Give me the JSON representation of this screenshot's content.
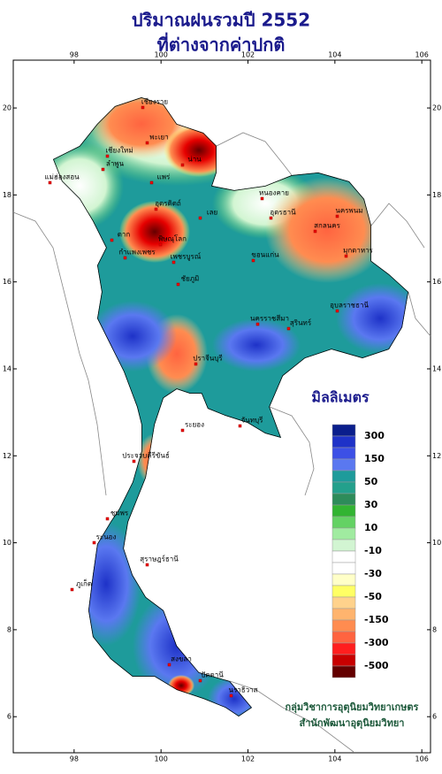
{
  "map": {
    "title": "ปริมาณฝนรวมปี 2552",
    "subtitle": "ที่ต่างจากค่าปกติ",
    "lon_range": [
      96.6,
      106.2
    ],
    "lat_range": [
      5.17,
      21.1
    ],
    "lon_ticks": [
      98,
      100,
      102,
      104,
      106
    ],
    "lat_ticks": [
      6,
      8,
      10,
      12,
      14,
      16,
      18,
      20
    ],
    "legend": {
      "title": "มิลลิเมตร",
      "labels": [
        300,
        150,
        50,
        30,
        10,
        -10,
        -30,
        -50,
        -150,
        -300,
        -500
      ],
      "colors": [
        "#0a1e8c",
        "#1e32c8",
        "#3c50e6",
        "#5a78f0",
        "#1e9b9b",
        "#23a08c",
        "#2d8c5a",
        "#32b432",
        "#64d264",
        "#a0eba0",
        "#d2f5d2",
        "#ffffff",
        "#ffffff",
        "#ffffc8",
        "#ffff64",
        "#ffd28c",
        "#ffb46e",
        "#ff8c50",
        "#ff6440",
        "#ff1e1e",
        "#c80000",
        "#640000"
      ]
    },
    "places": [
      "เชียงราย",
      "พะเยา",
      "น่าน",
      "เชียงใหม่",
      "ลำพูน",
      "แม่ฮ่องสอน",
      "แพร่",
      "อุตรดิตถ์",
      "ตาก",
      "พิษณุโลก",
      "กำแพงเพชร",
      "เพชรบูรณ์",
      "เลย",
      "หนองคาย",
      "อุดรธานี",
      "สกลนคร",
      "นครพนม",
      "มุกดาหาร",
      "ขอนแก่น",
      "ชัยภูมิ",
      "นครราชสีมา",
      "สุรินทร์",
      "อุบลราชธานี",
      "ปราจีนบุรี",
      "ระยอง",
      "จันทบุรี",
      "ประจวบคีรีขันธ์",
      "ชุมพร",
      "ระนอง",
      "สุราษฎร์ธานี",
      "ภูเก็ต",
      "สงขลา",
      "ปัตตานี",
      "นราธิวาส"
    ],
    "credits": [
      "กลุ่มวิชาการอุตุนิยมวิทยาเกษตร",
      "สำนักพัฒนาอุตุนิยมวิทยา"
    ]
  }
}
